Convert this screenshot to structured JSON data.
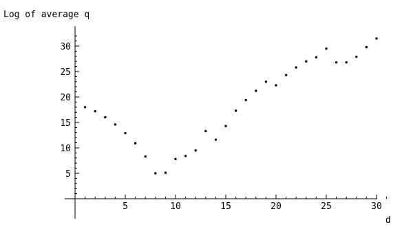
{
  "chart_data": {
    "type": "scatter",
    "ylabel": "Log of average q",
    "xlabel": "d",
    "xlim": [
      0,
      31
    ],
    "ylim": [
      0,
      32.5
    ],
    "x_ticks": [
      5,
      10,
      15,
      20,
      25,
      30
    ],
    "y_ticks": [
      5,
      10,
      15,
      20,
      25,
      30
    ],
    "grid": false,
    "series": [
      {
        "x": [
          1,
          2,
          3,
          4,
          5,
          6,
          7,
          8,
          9,
          10,
          11,
          12,
          13,
          14,
          15,
          16,
          17,
          18,
          19,
          20,
          21,
          22,
          23,
          24,
          25,
          26,
          27,
          28,
          29,
          30
        ],
        "y": [
          18.0,
          17.2,
          16.0,
          14.6,
          12.9,
          10.9,
          8.3,
          5.0,
          5.1,
          7.8,
          8.4,
          9.5,
          13.3,
          11.6,
          14.3,
          17.3,
          19.4,
          21.2,
          23.0,
          22.3,
          24.3,
          25.8,
          27.0,
          27.8,
          29.5,
          26.8,
          26.8,
          27.9,
          29.8,
          31.5
        ]
      }
    ]
  }
}
